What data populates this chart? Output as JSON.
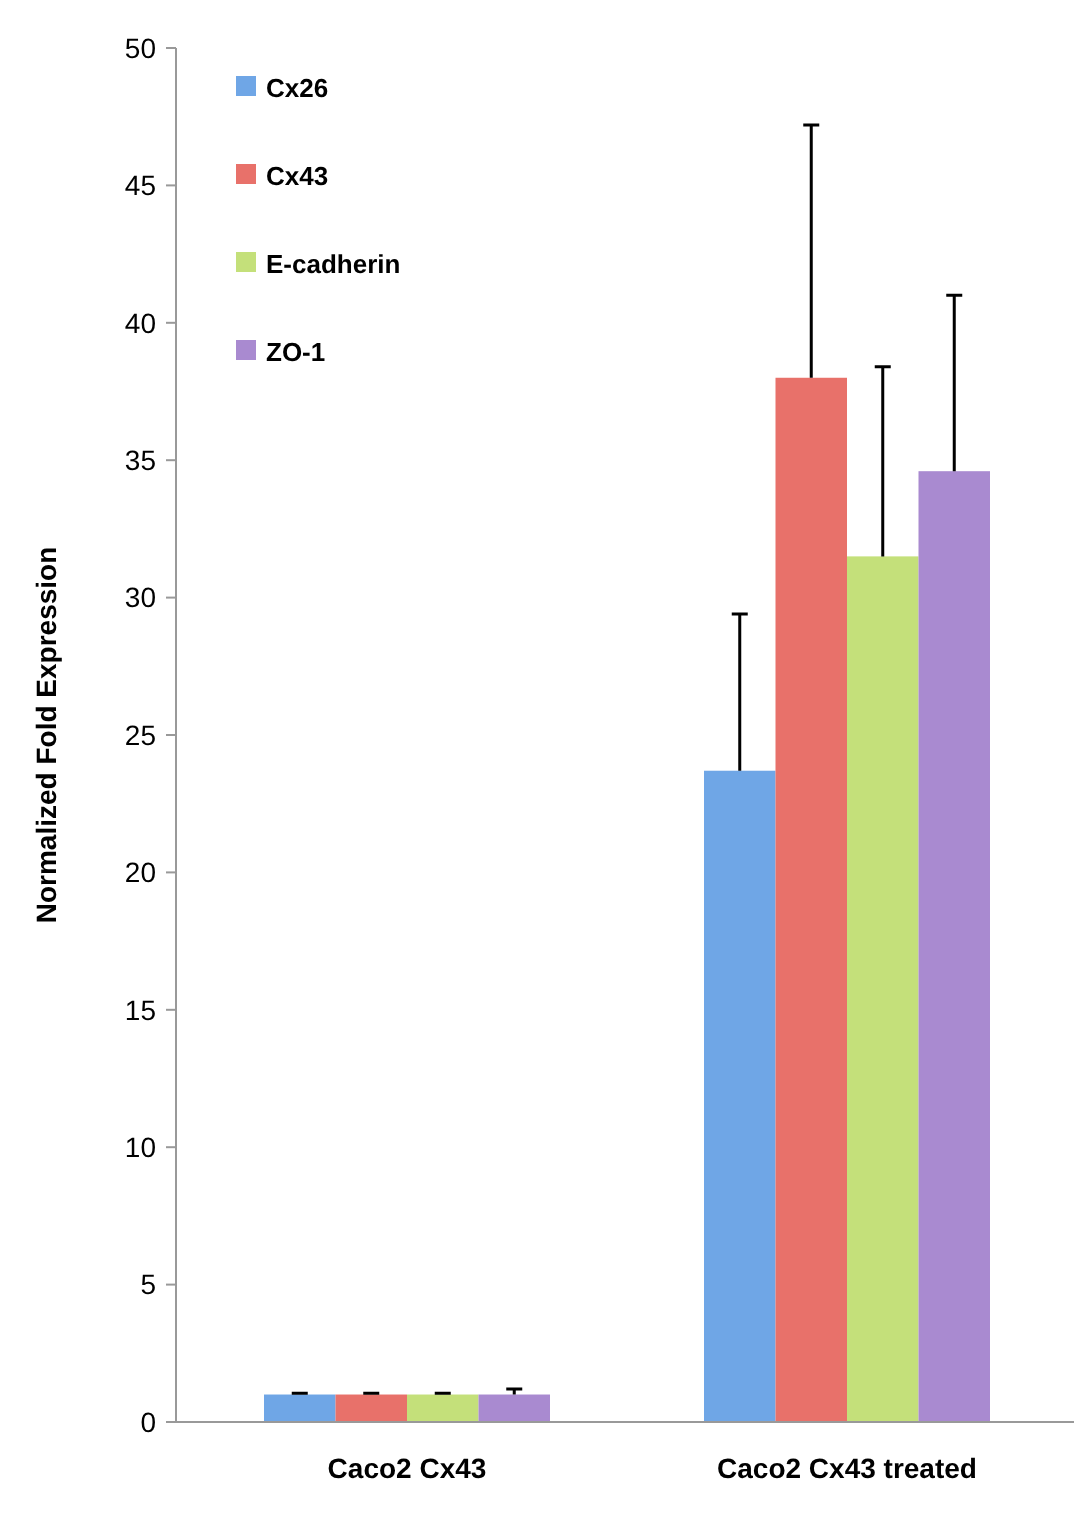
{
  "chart_data": {
    "type": "bar",
    "ylabel": "Normalized Fold Expression",
    "categories": [
      "Caco2 Cx43",
      "Caco2 Cx43 treated"
    ],
    "series": [
      {
        "name": "Cx26",
        "color": "#6fa6e6",
        "values": [
          1,
          23.7
        ],
        "errors": [
          [
            1,
            1.05
          ],
          [
            23.7,
            29.4
          ]
        ]
      },
      {
        "name": "Cx43",
        "color": "#e8716a",
        "values": [
          1,
          38
        ],
        "errors": [
          [
            1,
            1.05
          ],
          [
            38,
            47.2
          ]
        ]
      },
      {
        "name": "E-cadherin",
        "color": "#c4e07a",
        "values": [
          1,
          31.5
        ],
        "errors": [
          [
            1,
            1.05
          ],
          [
            31.5,
            38.4
          ]
        ]
      },
      {
        "name": "ZO-1",
        "color": "#a98ad0",
        "values": [
          1,
          34.6
        ],
        "errors": [
          [
            1,
            1.2
          ],
          [
            34.6,
            41
          ]
        ]
      }
    ],
    "ylim": [
      0,
      50
    ],
    "yticks": [
      0,
      5,
      10,
      15,
      20,
      25,
      30,
      35,
      40,
      45,
      50
    ],
    "grid": false,
    "legend": "top left"
  }
}
